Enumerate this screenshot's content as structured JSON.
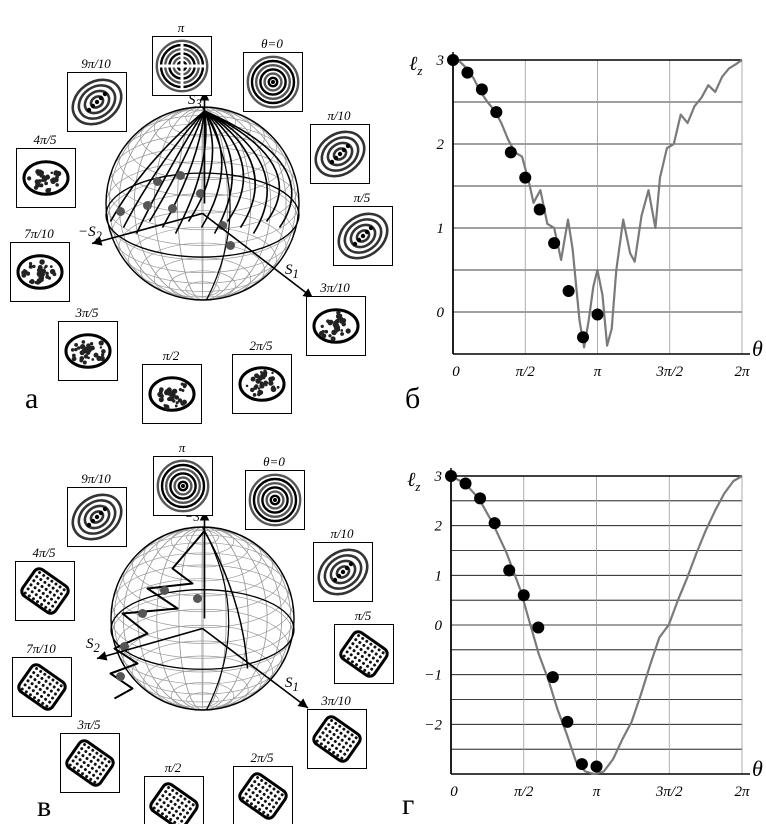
{
  "panels": [
    {
      "id": "a",
      "letter": "а",
      "axes": {
        "s3": "S",
        "s3_sub": "3",
        "s2": "−S",
        "s2_sub": "2",
        "s1": "S",
        "s1_sub": "1"
      },
      "thumbnails": [
        {
          "label": "π",
          "kind": "rings_cross"
        },
        {
          "label": "θ=0",
          "kind": "rings"
        },
        {
          "label": "9π/10",
          "kind": "tilted"
        },
        {
          "label": "π/10",
          "kind": "interference"
        },
        {
          "label": "4π/5",
          "kind": "ellipse_speckle"
        },
        {
          "label": "π/5",
          "kind": "interference"
        },
        {
          "label": "7π/10",
          "kind": "ellipse_speckle"
        },
        {
          "label": "3π/10",
          "kind": "speckle"
        },
        {
          "label": "3π/5",
          "kind": "speckle"
        },
        {
          "label": "π/2",
          "kind": "speckle"
        },
        {
          "label": "2π/5",
          "kind": "ellipse_speckle"
        }
      ]
    },
    {
      "id": "b",
      "letter": "б",
      "ylabel": "ℓ",
      "ylabel_sub": "z",
      "xlabel": "θ"
    },
    {
      "id": "c",
      "letter": "в",
      "axes": {
        "s3": "S",
        "s3_sub": "3",
        "s2": "S",
        "s2_sub": "2",
        "s1": "S",
        "s1_sub": "1"
      },
      "thumbnails": [
        {
          "label": "π",
          "kind": "rings"
        },
        {
          "label": "θ=0",
          "kind": "rings"
        },
        {
          "label": "9π/10",
          "kind": "tilted"
        },
        {
          "label": "π/10",
          "kind": "tilted"
        },
        {
          "label": "4π/5",
          "kind": "grid"
        },
        {
          "label": "π/5",
          "kind": "grid"
        },
        {
          "label": "7π/10",
          "kind": "grid"
        },
        {
          "label": "3π/10",
          "kind": "grid"
        },
        {
          "label": "3π/5",
          "kind": "grid"
        },
        {
          "label": "π/2",
          "kind": "grid"
        },
        {
          "label": "2π/5",
          "kind": "grid"
        }
      ]
    },
    {
      "id": "d",
      "letter": "г",
      "ylabel": "ℓ",
      "ylabel_sub": "z",
      "xlabel": "θ"
    }
  ],
  "chart_data": [
    {
      "type": "line",
      "panel": "б",
      "xlabel": "θ",
      "ylabel": "ℓz",
      "xlim": [
        0,
        6.2832
      ],
      "ylim": [
        -0.5,
        3
      ],
      "xticks": [
        0,
        1.5708,
        3.1416,
        4.7124,
        6.2832
      ],
      "xtick_labels": [
        "0",
        "π/2",
        "π",
        "3π/2",
        "2π"
      ],
      "yticks": [
        0,
        1,
        2,
        3
      ],
      "ytick_labels": [
        "0",
        "1",
        "2",
        "3"
      ],
      "grid": true,
      "series": [
        {
          "style": "gray-line",
          "x": [
            0,
            0.15,
            0.3,
            0.45,
            0.6,
            0.75,
            0.9,
            1.05,
            1.2,
            1.35,
            1.5,
            1.65,
            1.75,
            1.9,
            2.05,
            2.2,
            2.35,
            2.5,
            2.6,
            2.75,
            2.85,
            2.95,
            3.05,
            3.14,
            3.25,
            3.35,
            3.45,
            3.55,
            3.7,
            3.85,
            3.95,
            4.1,
            4.25,
            4.4,
            4.5,
            4.65,
            4.8,
            4.95,
            5.1,
            5.25,
            5.4,
            5.55,
            5.7,
            5.85,
            6.0,
            6.15,
            6.2832
          ],
          "y": [
            3.0,
            2.98,
            2.9,
            2.78,
            2.62,
            2.5,
            2.4,
            2.25,
            2.05,
            1.9,
            1.85,
            1.55,
            1.3,
            1.45,
            1.05,
            1.0,
            0.62,
            1.1,
            0.75,
            -0.1,
            -0.42,
            -0.1,
            0.3,
            0.5,
            0.2,
            -0.4,
            -0.2,
            0.5,
            1.1,
            0.7,
            0.6,
            1.15,
            1.45,
            1.0,
            1.6,
            1.95,
            2.0,
            2.35,
            2.25,
            2.45,
            2.55,
            2.7,
            2.62,
            2.8,
            2.9,
            2.95,
            3.0
          ]
        },
        {
          "style": "black-dots",
          "x": [
            0,
            0.314,
            0.628,
            0.942,
            1.257,
            1.571,
            1.885,
            2.199,
            2.513,
            2.827,
            3.142
          ],
          "y": [
            3.0,
            2.85,
            2.65,
            2.38,
            1.9,
            1.6,
            1.22,
            0.82,
            0.25,
            -0.3,
            -0.03
          ]
        }
      ]
    },
    {
      "type": "line",
      "panel": "г",
      "xlabel": "θ",
      "ylabel": "ℓz",
      "xlim": [
        0,
        6.2832
      ],
      "ylim": [
        -3,
        3
      ],
      "xticks": [
        0,
        1.5708,
        3.1416,
        4.7124,
        6.2832
      ],
      "xtick_labels": [
        "0",
        "π/2",
        "π",
        "3π/2",
        "2π"
      ],
      "yticks": [
        -2,
        -1,
        0,
        1,
        2,
        3
      ],
      "ytick_labels": [
        "−2",
        "−1",
        "0",
        "1",
        "2",
        "3"
      ],
      "grid": true,
      "series": [
        {
          "style": "gray-line",
          "x": [
            0,
            0.3,
            0.6,
            0.9,
            1.2,
            1.5,
            1.7,
            1.9,
            2.1,
            2.3,
            2.5,
            2.7,
            2.9,
            3.1,
            3.3,
            3.5,
            3.7,
            3.9,
            4.1,
            4.3,
            4.5,
            4.7,
            4.9,
            5.1,
            5.3,
            5.5,
            5.7,
            5.9,
            6.1,
            6.2832
          ],
          "y": [
            3.0,
            2.85,
            2.55,
            2.05,
            1.45,
            0.7,
            0.05,
            -0.6,
            -1.1,
            -1.7,
            -2.2,
            -2.75,
            -2.95,
            -3.0,
            -2.95,
            -2.7,
            -2.3,
            -1.95,
            -1.4,
            -0.8,
            -0.25,
            0.0,
            0.5,
            0.95,
            1.45,
            1.9,
            2.3,
            2.65,
            2.9,
            3.0
          ]
        },
        {
          "style": "black-dots",
          "x": [
            0,
            0.314,
            0.628,
            0.942,
            1.257,
            1.571,
            1.885,
            2.199,
            2.513,
            2.827,
            3.142
          ],
          "y": [
            3.0,
            2.85,
            2.55,
            2.05,
            1.1,
            0.6,
            -0.05,
            -1.05,
            -1.95,
            -2.8,
            -2.85
          ]
        }
      ]
    }
  ]
}
